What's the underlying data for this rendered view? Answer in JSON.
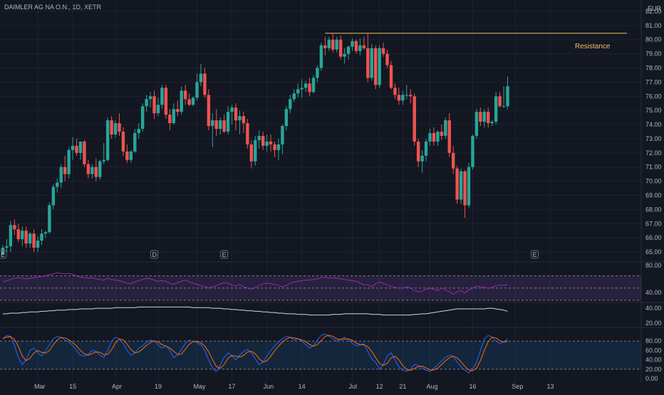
{
  "header": {
    "title": "DAIMLER AG NA O.N., 1D, XETR"
  },
  "currency": "EUR",
  "annotation": {
    "label": "Resistance",
    "price": 80.45
  },
  "colors": {
    "up": "#26a69a",
    "down": "#ef5350",
    "bg": "#131722",
    "grid": "#1e222d",
    "rsi": "#9c27b0",
    "stoch_k": "#2962ff",
    "stoch_d": "#ff6d00",
    "resistance": "#f0c060"
  },
  "event_markers": [
    {
      "text": "E",
      "index": 0
    },
    {
      "text": "D",
      "index": 39
    },
    {
      "text": "E",
      "index": 57
    },
    {
      "text": "E",
      "index": 137
    }
  ],
  "chart_data": {
    "type": "candlestick",
    "x_ticks": [
      "Mar",
      "15",
      "Apr",
      "19",
      "May",
      "17",
      "Jun",
      "14",
      "Jul",
      "12",
      "21",
      "Aug",
      "16",
      "Sep",
      "13"
    ],
    "y_ticks": [
      "65.00",
      "66.00",
      "67.00",
      "68.00",
      "69.00",
      "70.00",
      "71.00",
      "72.00",
      "73.00",
      "74.00",
      "75.00",
      "76.00",
      "77.00",
      "78.00",
      "79.00",
      "80.00",
      "81.00",
      "82.00"
    ],
    "ylim": [
      64.8,
      82.3
    ],
    "candles": [
      [
        64.8,
        65.5,
        64.8,
        65.3
      ],
      [
        65.3,
        65.9,
        65.0,
        65.4
      ],
      [
        65.4,
        67.2,
        65.0,
        66.9
      ],
      [
        66.9,
        67.3,
        66.2,
        66.6
      ],
      [
        66.6,
        67.0,
        65.7,
        65.9
      ],
      [
        65.9,
        66.8,
        65.4,
        66.5
      ],
      [
        66.5,
        66.8,
        65.3,
        65.6
      ],
      [
        65.6,
        66.4,
        65.3,
        66.3
      ],
      [
        66.3,
        66.6,
        65.0,
        65.3
      ],
      [
        65.3,
        66.1,
        65.0,
        65.8
      ],
      [
        65.8,
        66.6,
        65.5,
        66.3
      ],
      [
        66.3,
        66.5,
        66.0,
        66.4
      ],
      [
        66.4,
        68.5,
        66.3,
        68.3
      ],
      [
        68.3,
        69.8,
        68.0,
        69.6
      ],
      [
        69.6,
        70.2,
        69.2,
        69.9
      ],
      [
        69.9,
        71.2,
        69.5,
        71.0
      ],
      [
        71.0,
        71.8,
        70.0,
        70.5
      ],
      [
        70.5,
        72.4,
        70.2,
        72.2
      ],
      [
        72.2,
        73.1,
        71.5,
        72.5
      ],
      [
        72.5,
        73.0,
        71.8,
        72.0
      ],
      [
        72.0,
        72.8,
        71.5,
        72.8
      ],
      [
        72.8,
        72.9,
        71.0,
        71.2
      ],
      [
        71.2,
        71.5,
        70.2,
        70.5
      ],
      [
        70.5,
        71.2,
        70.2,
        71.0
      ],
      [
        71.0,
        71.6,
        70.0,
        70.3
      ],
      [
        70.3,
        71.5,
        70.1,
        71.4
      ],
      [
        71.4,
        72.7,
        71.2,
        71.5
      ],
      [
        71.5,
        74.5,
        71.4,
        74.3
      ],
      [
        74.3,
        74.6,
        73.0,
        73.3
      ],
      [
        73.3,
        74.3,
        73.1,
        74.1
      ],
      [
        74.1,
        74.8,
        73.2,
        73.5
      ],
      [
        73.5,
        73.8,
        71.8,
        72.1
      ],
      [
        72.1,
        72.6,
        71.3,
        71.5
      ],
      [
        71.5,
        72.2,
        71.3,
        72.1
      ],
      [
        72.1,
        73.7,
        72.0,
        73.4
      ],
      [
        73.4,
        74.1,
        73.0,
        73.7
      ],
      [
        73.7,
        75.5,
        73.5,
        75.3
      ],
      [
        75.3,
        76.1,
        74.9,
        75.8
      ],
      [
        75.8,
        76.3,
        75.2,
        76.0
      ],
      [
        76.0,
        76.4,
        74.4,
        74.8
      ],
      [
        74.8,
        75.9,
        74.6,
        75.4
      ],
      [
        75.4,
        76.8,
        75.1,
        76.6
      ],
      [
        76.6,
        76.8,
        74.4,
        74.7
      ],
      [
        74.7,
        75.1,
        73.6,
        74.1
      ],
      [
        74.1,
        75.5,
        74.0,
        75.1
      ],
      [
        75.1,
        75.7,
        74.6,
        74.9
      ],
      [
        74.9,
        76.7,
        74.7,
        76.4
      ],
      [
        76.4,
        76.8,
        75.4,
        75.8
      ],
      [
        75.8,
        76.2,
        75.3,
        75.4
      ],
      [
        75.4,
        76.0,
        75.3,
        75.9
      ],
      [
        75.9,
        77.6,
        75.7,
        77.0
      ],
      [
        77.0,
        78.3,
        76.7,
        77.6
      ],
      [
        77.6,
        78.0,
        75.9,
        76.1
      ],
      [
        76.1,
        76.5,
        73.6,
        73.9
      ],
      [
        73.9,
        74.8,
        72.4,
        74.3
      ],
      [
        74.3,
        75.1,
        73.2,
        73.7
      ],
      [
        73.7,
        74.5,
        73.3,
        74.3
      ],
      [
        74.3,
        74.7,
        73.4,
        73.5
      ],
      [
        73.5,
        75.3,
        73.3,
        74.9
      ],
      [
        74.9,
        75.4,
        74.0,
        75.2
      ],
      [
        75.2,
        75.5,
        73.6,
        74.3
      ],
      [
        74.3,
        75.0,
        73.3,
        74.6
      ],
      [
        74.6,
        74.9,
        73.4,
        74.1
      ],
      [
        74.1,
        74.4,
        72.3,
        72.6
      ],
      [
        72.6,
        72.9,
        70.9,
        71.4
      ],
      [
        71.4,
        73.2,
        71.1,
        72.9
      ],
      [
        72.9,
        73.6,
        72.3,
        73.2
      ],
      [
        73.2,
        73.5,
        72.2,
        72.5
      ],
      [
        72.5,
        73.3,
        72.1,
        72.8
      ],
      [
        72.8,
        73.3,
        72.1,
        72.6
      ],
      [
        72.6,
        72.8,
        71.7,
        72.2
      ],
      [
        72.2,
        73.0,
        71.5,
        72.6
      ],
      [
        72.6,
        74.0,
        71.9,
        73.9
      ],
      [
        73.9,
        75.3,
        73.6,
        75.1
      ],
      [
        75.1,
        76.1,
        74.8,
        75.8
      ],
      [
        75.8,
        76.5,
        75.6,
        76.2
      ],
      [
        76.2,
        76.9,
        75.9,
        76.5
      ],
      [
        76.5,
        77.2,
        75.9,
        76.6
      ],
      [
        76.6,
        77.1,
        76.3,
        76.9
      ],
      [
        76.9,
        77.3,
        76.0,
        76.3
      ],
      [
        76.3,
        77.5,
        76.2,
        77.3
      ],
      [
        77.3,
        78.2,
        77.0,
        78.0
      ],
      [
        78.0,
        79.8,
        77.8,
        79.6
      ],
      [
        79.6,
        80.2,
        78.9,
        79.4
      ],
      [
        79.4,
        80.2,
        79.2,
        80.0
      ],
      [
        80.0,
        80.5,
        79.1,
        79.3
      ],
      [
        79.3,
        80.2,
        79.1,
        80.0
      ],
      [
        80.0,
        80.3,
        78.6,
        78.8
      ],
      [
        78.8,
        79.4,
        78.3,
        79.0
      ],
      [
        79.0,
        79.6,
        78.6,
        79.5
      ],
      [
        79.5,
        80.1,
        79.2,
        79.9
      ],
      [
        79.9,
        80.0,
        79.0,
        79.2
      ],
      [
        79.2,
        80.1,
        78.9,
        79.6
      ],
      [
        79.6,
        80.2,
        79.3,
        79.4
      ],
      [
        79.4,
        80.5,
        77.0,
        77.3
      ],
      [
        77.3,
        79.7,
        77.1,
        79.4
      ],
      [
        79.4,
        79.6,
        76.5,
        76.8
      ],
      [
        76.8,
        79.6,
        76.6,
        79.4
      ],
      [
        79.4,
        79.8,
        78.8,
        79.0
      ],
      [
        79.0,
        79.3,
        78.0,
        78.2
      ],
      [
        78.2,
        78.5,
        76.5,
        76.6
      ],
      [
        76.6,
        76.9,
        75.8,
        76.1
      ],
      [
        76.1,
        76.6,
        75.4,
        75.7
      ],
      [
        75.7,
        76.4,
        75.4,
        76.1
      ],
      [
        76.1,
        76.8,
        75.8,
        76.1
      ],
      [
        76.1,
        76.5,
        75.5,
        76.0
      ],
      [
        76.0,
        76.2,
        72.5,
        72.8
      ],
      [
        72.8,
        73.0,
        71.0,
        71.4
      ],
      [
        71.4,
        72.2,
        70.6,
        71.8
      ],
      [
        71.8,
        73.0,
        71.4,
        72.8
      ],
      [
        72.8,
        73.7,
        72.5,
        73.4
      ],
      [
        73.4,
        73.8,
        72.5,
        72.8
      ],
      [
        72.8,
        73.6,
        72.5,
        73.5
      ],
      [
        73.5,
        74.0,
        72.9,
        73.2
      ],
      [
        73.2,
        74.5,
        73.0,
        74.3
      ],
      [
        74.3,
        74.8,
        71.7,
        72.0
      ],
      [
        72.0,
        72.5,
        70.5,
        70.9
      ],
      [
        70.9,
        71.1,
        68.4,
        68.7
      ],
      [
        68.7,
        70.9,
        68.4,
        70.7
      ],
      [
        70.7,
        70.8,
        67.4,
        68.3
      ],
      [
        68.3,
        71.3,
        68.1,
        71.0
      ],
      [
        71.0,
        73.3,
        70.8,
        73.2
      ],
      [
        73.2,
        75.1,
        73.0,
        74.9
      ],
      [
        74.9,
        75.2,
        73.9,
        74.2
      ],
      [
        74.2,
        75.1,
        73.8,
        74.9
      ],
      [
        74.9,
        75.2,
        73.8,
        74.1
      ],
      [
        74.1,
        74.3,
        73.9,
        74.2
      ],
      [
        74.2,
        76.3,
        74.0,
        76.0
      ],
      [
        76.0,
        76.3,
        75.2,
        75.3
      ],
      [
        75.3,
        76.7,
        75.2,
        75.3
      ],
      [
        75.3,
        77.4,
        75.1,
        76.7
      ]
    ],
    "rsi": {
      "ticks": [
        "80.00",
        "40.00"
      ],
      "ylim": [
        30,
        88
      ],
      "upper": 70,
      "lower": 30,
      "values": [
        60,
        62,
        64,
        66,
        67,
        66,
        65,
        66,
        67,
        68,
        69,
        70,
        72,
        73,
        75,
        74,
        73,
        74,
        72,
        70,
        68,
        67,
        66,
        67,
        65,
        64,
        63,
        66,
        64,
        63,
        62,
        60,
        58,
        57,
        60,
        62,
        64,
        66,
        65,
        63,
        61,
        62,
        61,
        58,
        56,
        59,
        61,
        63,
        60,
        58,
        56,
        54,
        52,
        50,
        52,
        54,
        57,
        59,
        58,
        55,
        53,
        56,
        52,
        50,
        48,
        51,
        54,
        57,
        58,
        57,
        56,
        54,
        52,
        54,
        58,
        60,
        61,
        62,
        63,
        63,
        64,
        65,
        67,
        68,
        66,
        67,
        66,
        65,
        64,
        63,
        62,
        61,
        58,
        55,
        56,
        52,
        57,
        60,
        58,
        55,
        53,
        51,
        50,
        50,
        52,
        50,
        46,
        44,
        45,
        48,
        50,
        48,
        46,
        50,
        47,
        44,
        40,
        44,
        46,
        42,
        47,
        50,
        53,
        52,
        51,
        50,
        51,
        54,
        55,
        54,
        56
      ]
    },
    "middle": {
      "ticks": [
        "40.00",
        "20.00"
      ],
      "ylim": [
        10,
        45
      ],
      "values": [
        30,
        30,
        31,
        31,
        31,
        32,
        32,
        33,
        33,
        33,
        34,
        34,
        35,
        35,
        36,
        36,
        36,
        37,
        37,
        37,
        38,
        38,
        38,
        38,
        39,
        39,
        39,
        39,
        39,
        40,
        40,
        40,
        40,
        40,
        40,
        41,
        41,
        41,
        41,
        41,
        41,
        41,
        41,
        41,
        41,
        41,
        41,
        41,
        41,
        40,
        40,
        40,
        40,
        40,
        39,
        39,
        39,
        38,
        38,
        37,
        37,
        36,
        36,
        35,
        35,
        34,
        34,
        33,
        33,
        32,
        32,
        31,
        31,
        30,
        30,
        30,
        29,
        29,
        29,
        28,
        28,
        28,
        28,
        28,
        28,
        29,
        29,
        29,
        30,
        30,
        30,
        30,
        30,
        30,
        30,
        29,
        29,
        29,
        28,
        28,
        28,
        28,
        28,
        28,
        28,
        28,
        29,
        29,
        30,
        30,
        31,
        32,
        33,
        34,
        35,
        36,
        37,
        38,
        38,
        38,
        38,
        38,
        38,
        38,
        38,
        39,
        39,
        38,
        37,
        36,
        34
      ]
    },
    "stoch": {
      "ticks": [
        "80.00",
        "60.00",
        "40.00",
        "20.00",
        "0.00"
      ],
      "ylim": [
        0,
        100
      ],
      "upper": 80,
      "lower": 20,
      "k": [
        85,
        92,
        90,
        70,
        45,
        30,
        40,
        60,
        65,
        55,
        48,
        60,
        72,
        85,
        90,
        88,
        82,
        78,
        70,
        60,
        50,
        48,
        52,
        60,
        58,
        50,
        45,
        60,
        80,
        88,
        85,
        75,
        60,
        50,
        55,
        65,
        70,
        78,
        82,
        80,
        72,
        65,
        70,
        60,
        45,
        50,
        62,
        75,
        82,
        80,
        76,
        72,
        60,
        40,
        22,
        15,
        30,
        45,
        55,
        48,
        40,
        50,
        58,
        62,
        55,
        42,
        30,
        35,
        48,
        60,
        70,
        78,
        85,
        90,
        88,
        82,
        85,
        80,
        72,
        65,
        70,
        82,
        92,
        95,
        90,
        85,
        80,
        84,
        88,
        82,
        75,
        70,
        72,
        74,
        58,
        42,
        35,
        20,
        30,
        48,
        55,
        40,
        25,
        18,
        15,
        20,
        30,
        28,
        22,
        18,
        15,
        22,
        30,
        38,
        45,
        50,
        48,
        35,
        25,
        18,
        12,
        20,
        35,
        60,
        85,
        92,
        88,
        80,
        75,
        78,
        85
      ]
    },
    "x_dates": {
      "Mar": 9,
      "15": 18,
      "Apr": 29,
      "19": 40,
      "May": 50,
      "17": 59,
      "Jun": 68,
      "14": 77,
      "Jul": 90,
      "12": 97,
      "21": 103,
      "Aug": 110,
      "16": 121,
      "Sep": 132,
      "13": 141
    }
  }
}
